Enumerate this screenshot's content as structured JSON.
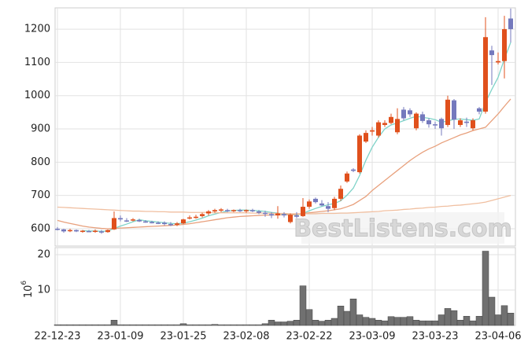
{
  "chart_data": {
    "type": "candlestick",
    "categories": [
      "22-12-23",
      null,
      null,
      null,
      null,
      null,
      null,
      null,
      null,
      null,
      "23-01-09",
      null,
      null,
      null,
      null,
      null,
      null,
      null,
      null,
      null,
      "23-01-25",
      null,
      null,
      null,
      null,
      null,
      null,
      null,
      null,
      null,
      "23-02-08",
      null,
      null,
      null,
      null,
      null,
      null,
      null,
      null,
      null,
      "23-02-22",
      null,
      null,
      null,
      null,
      null,
      null,
      null,
      null,
      null,
      "23-03-09",
      null,
      null,
      null,
      null,
      null,
      null,
      null,
      null,
      null,
      "23-03-23",
      null,
      null,
      null,
      null,
      null,
      null,
      null,
      null,
      null,
      "23-04-06",
      null,
      null
    ],
    "open": [
      600,
      598,
      595,
      596,
      592,
      593,
      592,
      592,
      590,
      598,
      632,
      625,
      626,
      626,
      622,
      620,
      618,
      618,
      614,
      612,
      616,
      632,
      634,
      638,
      646,
      652,
      656,
      656,
      654,
      656,
      654,
      656,
      652,
      648,
      644,
      640,
      644,
      620,
      640,
      638,
      666,
      690,
      676,
      668,
      662,
      690,
      742,
      778,
      770,
      862,
      892,
      880,
      912,
      918,
      890,
      958,
      956,
      902,
      944,
      926,
      914,
      930,
      912,
      986,
      912,
      922,
      902,
      962,
      952,
      1136,
      1100,
      1104,
      1232
    ],
    "high": [
      605,
      600,
      600,
      598,
      596,
      596,
      598,
      596,
      598,
      652,
      640,
      632,
      632,
      630,
      626,
      624,
      622,
      622,
      620,
      620,
      630,
      640,
      642,
      648,
      656,
      660,
      662,
      660,
      658,
      660,
      658,
      660,
      656,
      654,
      650,
      668,
      650,
      646,
      650,
      692,
      688,
      694,
      686,
      680,
      696,
      730,
      772,
      782,
      884,
      896,
      906,
      926,
      926,
      946,
      962,
      966,
      962,
      950,
      952,
      932,
      922,
      934,
      1000,
      990,
      932,
      934,
      932,
      966,
      1236,
      1150,
      1130,
      1240,
      1262
    ],
    "low": [
      595,
      588,
      590,
      590,
      588,
      590,
      588,
      585,
      588,
      596,
      622,
      620,
      622,
      620,
      618,
      616,
      614,
      610,
      608,
      608,
      614,
      628,
      630,
      634,
      640,
      648,
      650,
      650,
      650,
      650,
      648,
      650,
      644,
      636,
      632,
      630,
      634,
      616,
      632,
      636,
      660,
      676,
      668,
      650,
      656,
      684,
      738,
      770,
      766,
      858,
      880,
      874,
      906,
      914,
      884,
      926,
      936,
      896,
      918,
      904,
      900,
      880,
      906,
      900,
      906,
      906,
      896,
      944,
      946,
      1032,
      1094,
      1052,
      1160
    ],
    "close": [
      598,
      592,
      596,
      592,
      594,
      591,
      594,
      590,
      596,
      632,
      628,
      624,
      628,
      622,
      620,
      618,
      616,
      614,
      612,
      616,
      628,
      634,
      636,
      644,
      652,
      656,
      658,
      654,
      656,
      655,
      656,
      653,
      648,
      646,
      640,
      646,
      640,
      642,
      636,
      666,
      682,
      680,
      670,
      660,
      690,
      720,
      766,
      774,
      880,
      888,
      896,
      920,
      918,
      936,
      930,
      932,
      944,
      946,
      924,
      914,
      912,
      902,
      988,
      928,
      926,
      918,
      926,
      952,
      1176,
      1122,
      1104,
      1200,
      1200
    ],
    "up_color": "#e0501c",
    "down_color": "#7479bd",
    "moving_averages": [
      {
        "color": "#7fd3c8",
        "values": [
          null,
          null,
          null,
          null,
          594,
          593,
          593,
          592,
          593,
          601,
          608,
          614,
          621,
          627,
          624,
          622,
          620,
          618,
          616,
          615,
          617,
          621,
          626,
          632,
          639,
          644,
          649,
          653,
          655,
          656,
          656,
          655,
          654,
          652,
          649,
          647,
          644,
          643,
          641,
          646,
          654,
          661,
          667,
          672,
          676,
          684,
          701,
          722,
          760,
          806,
          845,
          875,
          900,
          912,
          918,
          925,
          932,
          938,
          935,
          932,
          928,
          920,
          924,
          929,
          930,
          928,
          926,
          930,
          980,
          1019,
          1055,
          1110,
          1160
        ]
      },
      {
        "color": "#e8a07c",
        "values": [
          625,
          620,
          616,
          612,
          608,
          605,
          603,
          601,
          600,
          601,
          602,
          603,
          604,
          605,
          606,
          607,
          608,
          609,
          610,
          611,
          613,
          615,
          618,
          621,
          624,
          627,
          630,
          633,
          635,
          637,
          638,
          639,
          640,
          641,
          641,
          642,
          642,
          642,
          643,
          645,
          648,
          650,
          652,
          654,
          657,
          660,
          666,
          673,
          685,
          697,
          715,
          730,
          745,
          760,
          775,
          790,
          805,
          818,
          830,
          840,
          848,
          858,
          866,
          874,
          882,
          888,
          895,
          900,
          905,
          925,
          945,
          968,
          990
        ]
      },
      {
        "color": "#f0bfa0",
        "values": [
          665,
          664,
          663,
          662,
          661,
          660,
          659,
          658,
          657,
          656,
          655,
          654,
          653,
          653,
          652,
          652,
          651,
          651,
          650,
          650,
          650,
          649,
          649,
          649,
          649,
          648,
          648,
          648,
          648,
          648,
          648,
          647,
          647,
          647,
          646,
          646,
          646,
          645,
          645,
          645,
          645,
          645,
          646,
          646,
          646,
          647,
          647,
          648,
          649,
          650,
          651,
          652,
          654,
          655,
          656,
          658,
          659,
          661,
          662,
          664,
          665,
          667,
          668,
          670,
          671,
          673,
          675,
          677,
          680,
          685,
          690,
          695,
          700
        ]
      }
    ],
    "ylim": [
      548,
      1264
    ],
    "yticks": [
      600,
      700,
      800,
      900,
      1000,
      1100,
      1200
    ],
    "grid": true,
    "volume": {
      "color": "#707070",
      "values": [
        0.2,
        0.2,
        0.2,
        0.2,
        0.2,
        0.2,
        0.2,
        0.2,
        0.2,
        1.5,
        0.2,
        0.2,
        0.2,
        0.2,
        0.2,
        0.2,
        0.2,
        0.2,
        0.2,
        0.2,
        0.5,
        0.2,
        0.2,
        0.2,
        0.2,
        0.3,
        0.2,
        0.2,
        0.2,
        0.2,
        0.2,
        0.2,
        0.2,
        0.5,
        1.5,
        1.0,
        1.0,
        1.2,
        1.5,
        11.2,
        4.5,
        1.5,
        1.2,
        1.5,
        2.0,
        5.5,
        4.0,
        7.5,
        3.0,
        2.3,
        2.0,
        1.5,
        1.3,
        2.5,
        2.3,
        2.3,
        2.5,
        1.5,
        1.3,
        1.3,
        1.3,
        3.0,
        4.8,
        4.2,
        1.5,
        2.6,
        1.3,
        2.6,
        21.0,
        8.0,
        3.0,
        5.6,
        3.5
      ],
      "ylim": [
        0,
        22
      ],
      "yticks": [
        10,
        20
      ],
      "unit_base": "10",
      "unit_exponent": "6"
    },
    "watermark": "BestListens.com"
  }
}
